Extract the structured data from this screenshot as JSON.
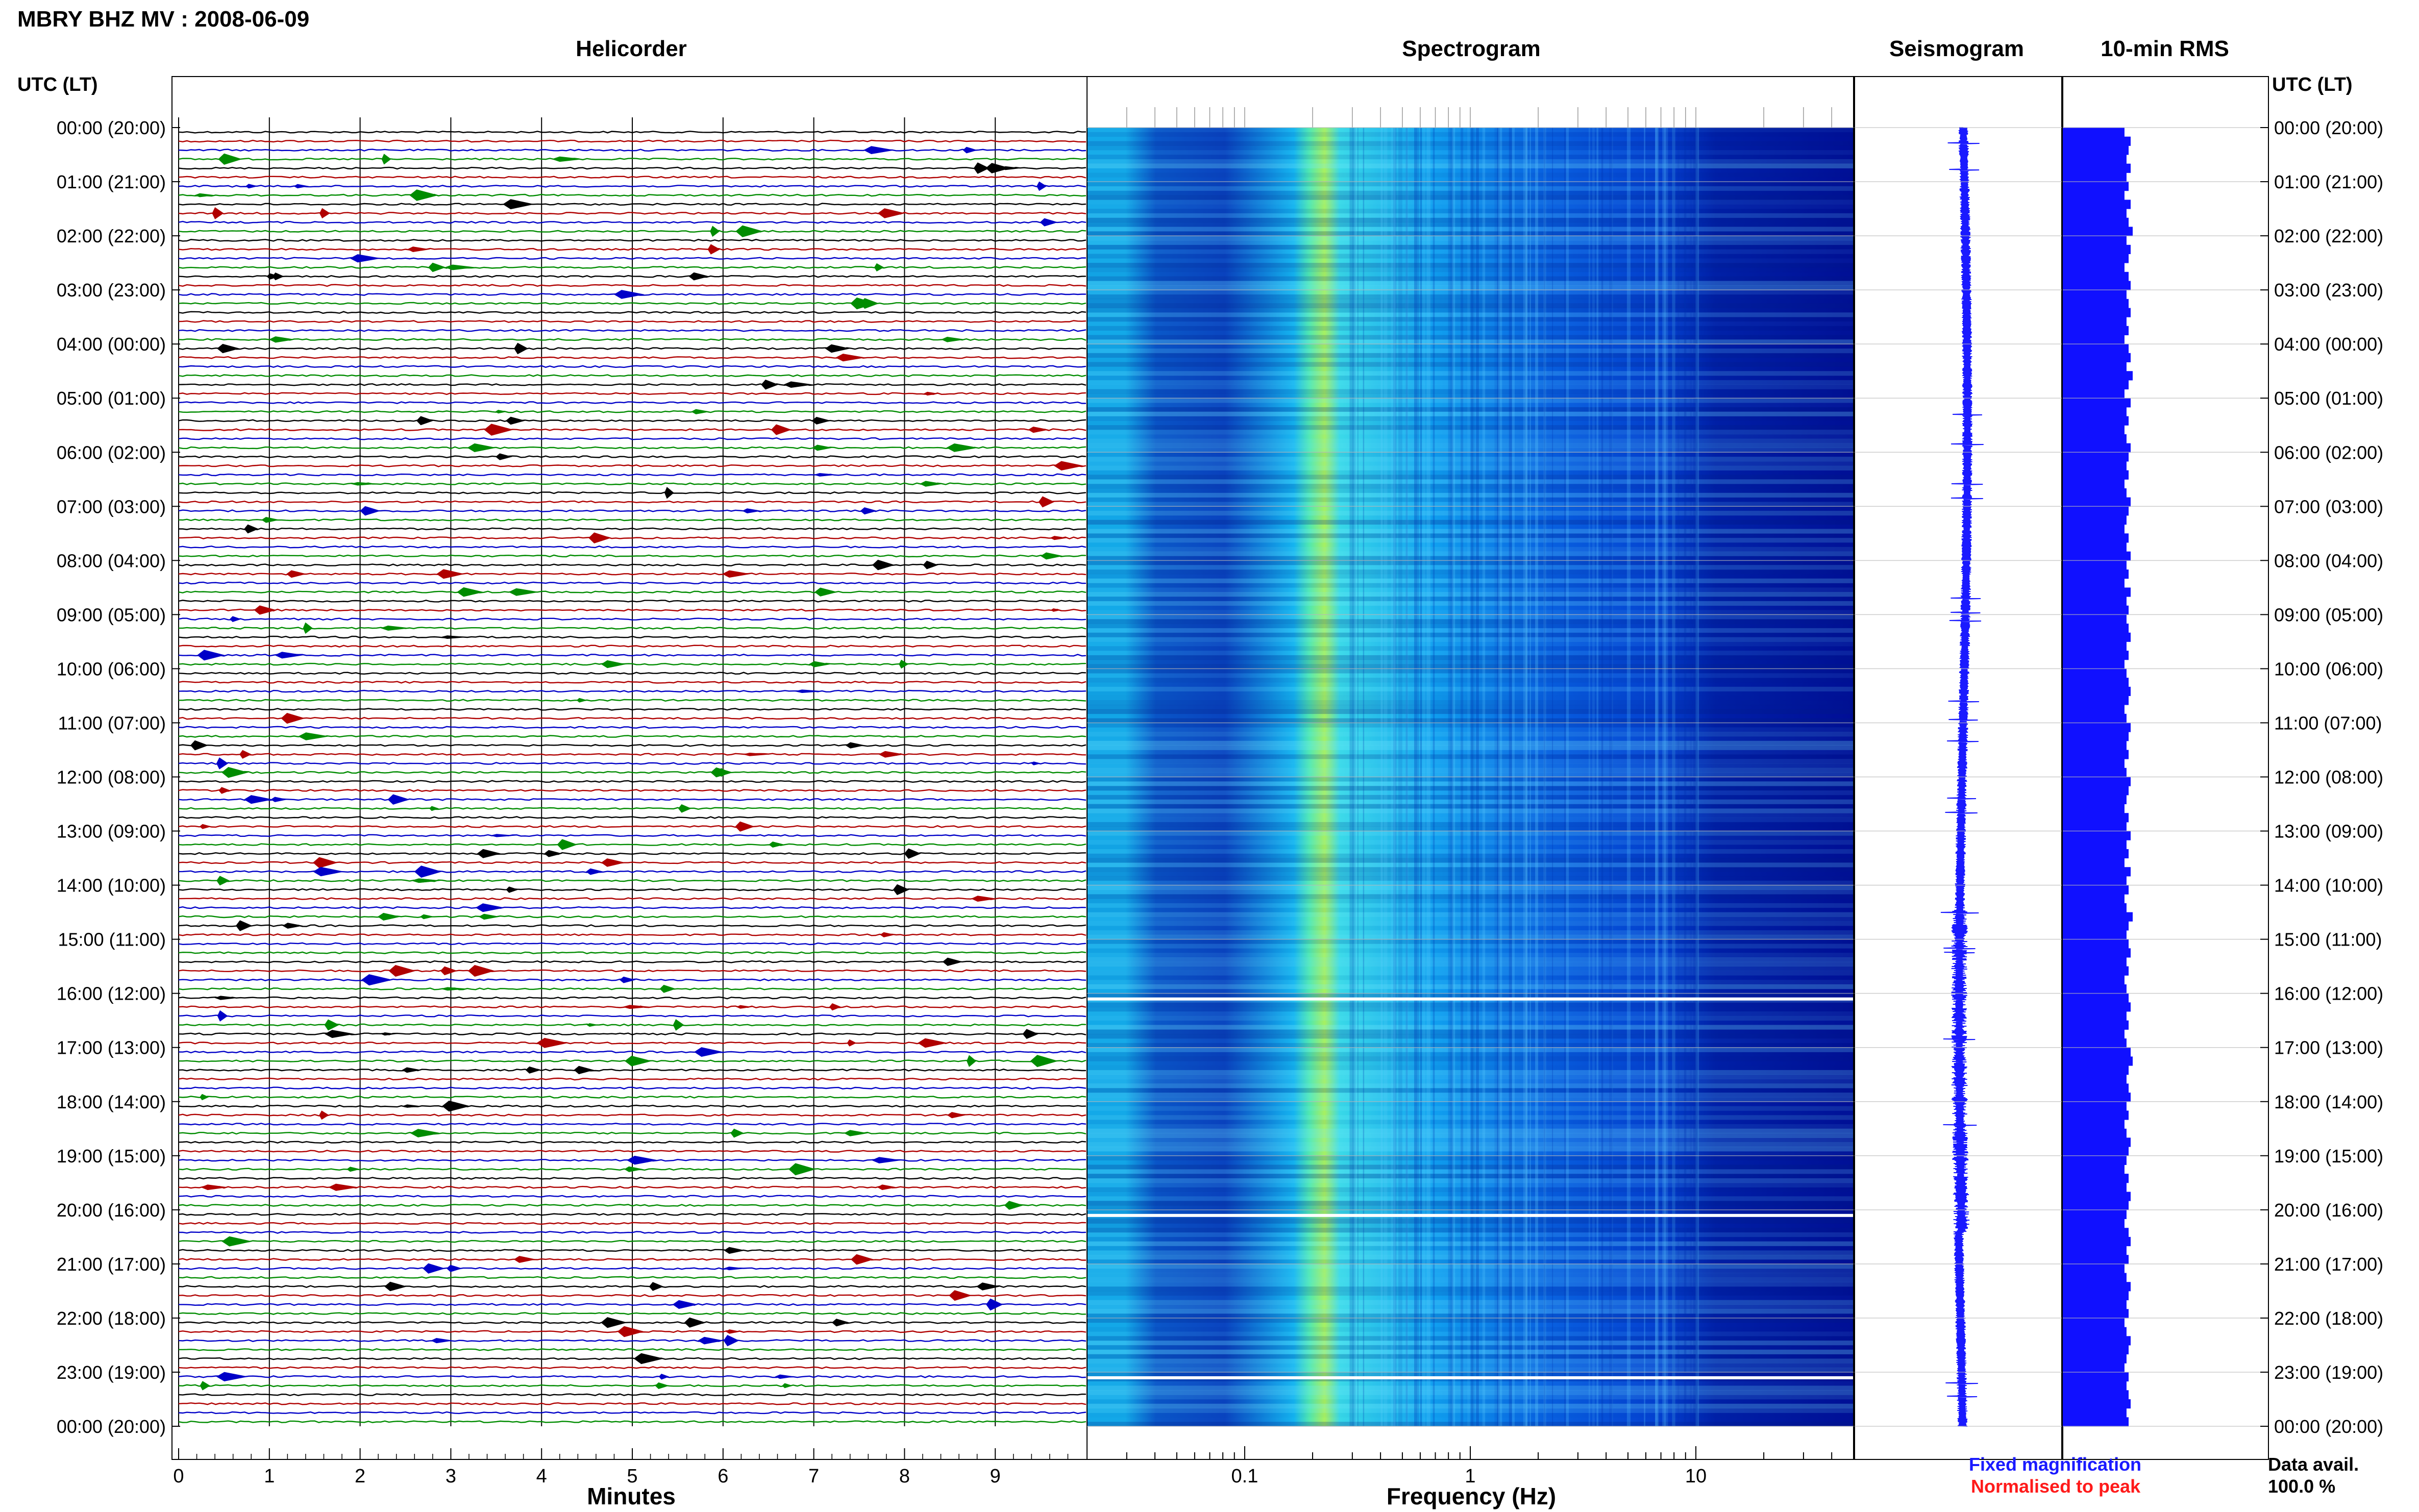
{
  "title": "MBRY BHZ MV : 2008-06-09",
  "time_axis_label": "UTC (LT)",
  "panels": {
    "helicorder": "Helicorder",
    "spectrogram": "Spectrogram",
    "seismogram": "Seismogram",
    "rms": "10-min RMS"
  },
  "footer": {
    "minutes_label": "Minutes",
    "frequency_label": "Frequency (Hz)",
    "fixed_magnification": "Fixed magnification",
    "normalised_to_peak": "Normalised to peak",
    "data_avail_label": "Data avail.",
    "data_avail_value": "100.0 %"
  },
  "colors": {
    "fixed": "#1a1aff",
    "normalised": "#ff1a1a",
    "trace_black": "#000000",
    "trace_red": "#b00000",
    "trace_blue": "#0000c8",
    "trace_green": "#008c00",
    "rms_bar": "#1010ff"
  },
  "chart_data": [
    {
      "type": "line",
      "name": "helicorder",
      "xlabel": "Minutes",
      "xlim": [
        0,
        10
      ],
      "xticks": [
        0,
        1,
        2,
        3,
        4,
        5,
        6,
        7,
        8,
        9
      ],
      "rows": 144,
      "row_minutes": 10,
      "trace_color_cycle": [
        "black",
        "red",
        "blue",
        "green"
      ]
    },
    {
      "type": "heatmap",
      "name": "spectrogram",
      "xlabel": "Frequency (Hz)",
      "xscale": "log",
      "xlim": [
        0.02,
        50
      ],
      "xticks": [
        0.1,
        1,
        10
      ],
      "dominant_band_hz": [
        0.2,
        0.3
      ],
      "data_gaps_utc": [
        "16:00",
        "20:00",
        "23:00"
      ]
    },
    {
      "type": "line",
      "name": "seismogram",
      "description_hours": 24
    },
    {
      "type": "bar",
      "name": "10-min RMS",
      "orientation": "horizontal",
      "values_relative": [
        0.3,
        0.33,
        0.32,
        0.31,
        0.33,
        0.31,
        0.32,
        0.3,
        0.33,
        0.31,
        0.32,
        0.34,
        0.31,
        0.33,
        0.32,
        0.3,
        0.32,
        0.33,
        0.31,
        0.32,
        0.33,
        0.31,
        0.32,
        0.3,
        0.32,
        0.33,
        0.31,
        0.34,
        0.32,
        0.3,
        0.33,
        0.31,
        0.32,
        0.3,
        0.31,
        0.33,
        0.32,
        0.31,
        0.32,
        0.3,
        0.31,
        0.33,
        0.32,
        0.31,
        0.3,
        0.32,
        0.31,
        0.33,
        0.31,
        0.32,
        0.3,
        0.33,
        0.31,
        0.32,
        0.31,
        0.32,
        0.33,
        0.31,
        0.32,
        0.3,
        0.31,
        0.32,
        0.33,
        0.32,
        0.3,
        0.31,
        0.33,
        0.32,
        0.31,
        0.32,
        0.3,
        0.31,
        0.33,
        0.32,
        0.31,
        0.3,
        0.32,
        0.31,
        0.33,
        0.31,
        0.32,
        0.3,
        0.33,
        0.31,
        0.32,
        0.3,
        0.31,
        0.34,
        0.32,
        0.31,
        0.32,
        0.33,
        0.31,
        0.32,
        0.3,
        0.31,
        0.32,
        0.33,
        0.31,
        0.32,
        0.3,
        0.31,
        0.33,
        0.34,
        0.32,
        0.31,
        0.32,
        0.33,
        0.31,
        0.32,
        0.3,
        0.31,
        0.33,
        0.32,
        0.31,
        0.3,
        0.32,
        0.31,
        0.33,
        0.32,
        0.31,
        0.3,
        0.32,
        0.33,
        0.31,
        0.32,
        0.3,
        0.31,
        0.33,
        0.32,
        0.31,
        0.32,
        0.3,
        0.31,
        0.33,
        0.32,
        0.31,
        0.3,
        0.32,
        0.31,
        0.32,
        0.33,
        0.31,
        0.32
      ]
    }
  ],
  "time_labels": [
    {
      "utc": "00:00 (20:00)"
    },
    {
      "utc": "01:00 (21:00)"
    },
    {
      "utc": "02:00 (22:00)"
    },
    {
      "utc": "03:00 (23:00)"
    },
    {
      "utc": "04:00 (00:00)"
    },
    {
      "utc": "05:00 (01:00)"
    },
    {
      "utc": "06:00 (02:00)"
    },
    {
      "utc": "07:00 (03:00)"
    },
    {
      "utc": "08:00 (04:00)"
    },
    {
      "utc": "09:00 (05:00)"
    },
    {
      "utc": "10:00 (06:00)"
    },
    {
      "utc": "11:00 (07:00)"
    },
    {
      "utc": "12:00 (08:00)"
    },
    {
      "utc": "13:00 (09:00)"
    },
    {
      "utc": "14:00 (10:00)"
    },
    {
      "utc": "15:00 (11:00)"
    },
    {
      "utc": "16:00 (12:00)"
    },
    {
      "utc": "17:00 (13:00)"
    },
    {
      "utc": "18:00 (14:00)"
    },
    {
      "utc": "19:00 (15:00)"
    },
    {
      "utc": "20:00 (16:00)"
    },
    {
      "utc": "21:00 (17:00)"
    },
    {
      "utc": "22:00 (18:00)"
    },
    {
      "utc": "23:00 (19:00)"
    },
    {
      "utc": "00:00 (20:00)"
    }
  ]
}
